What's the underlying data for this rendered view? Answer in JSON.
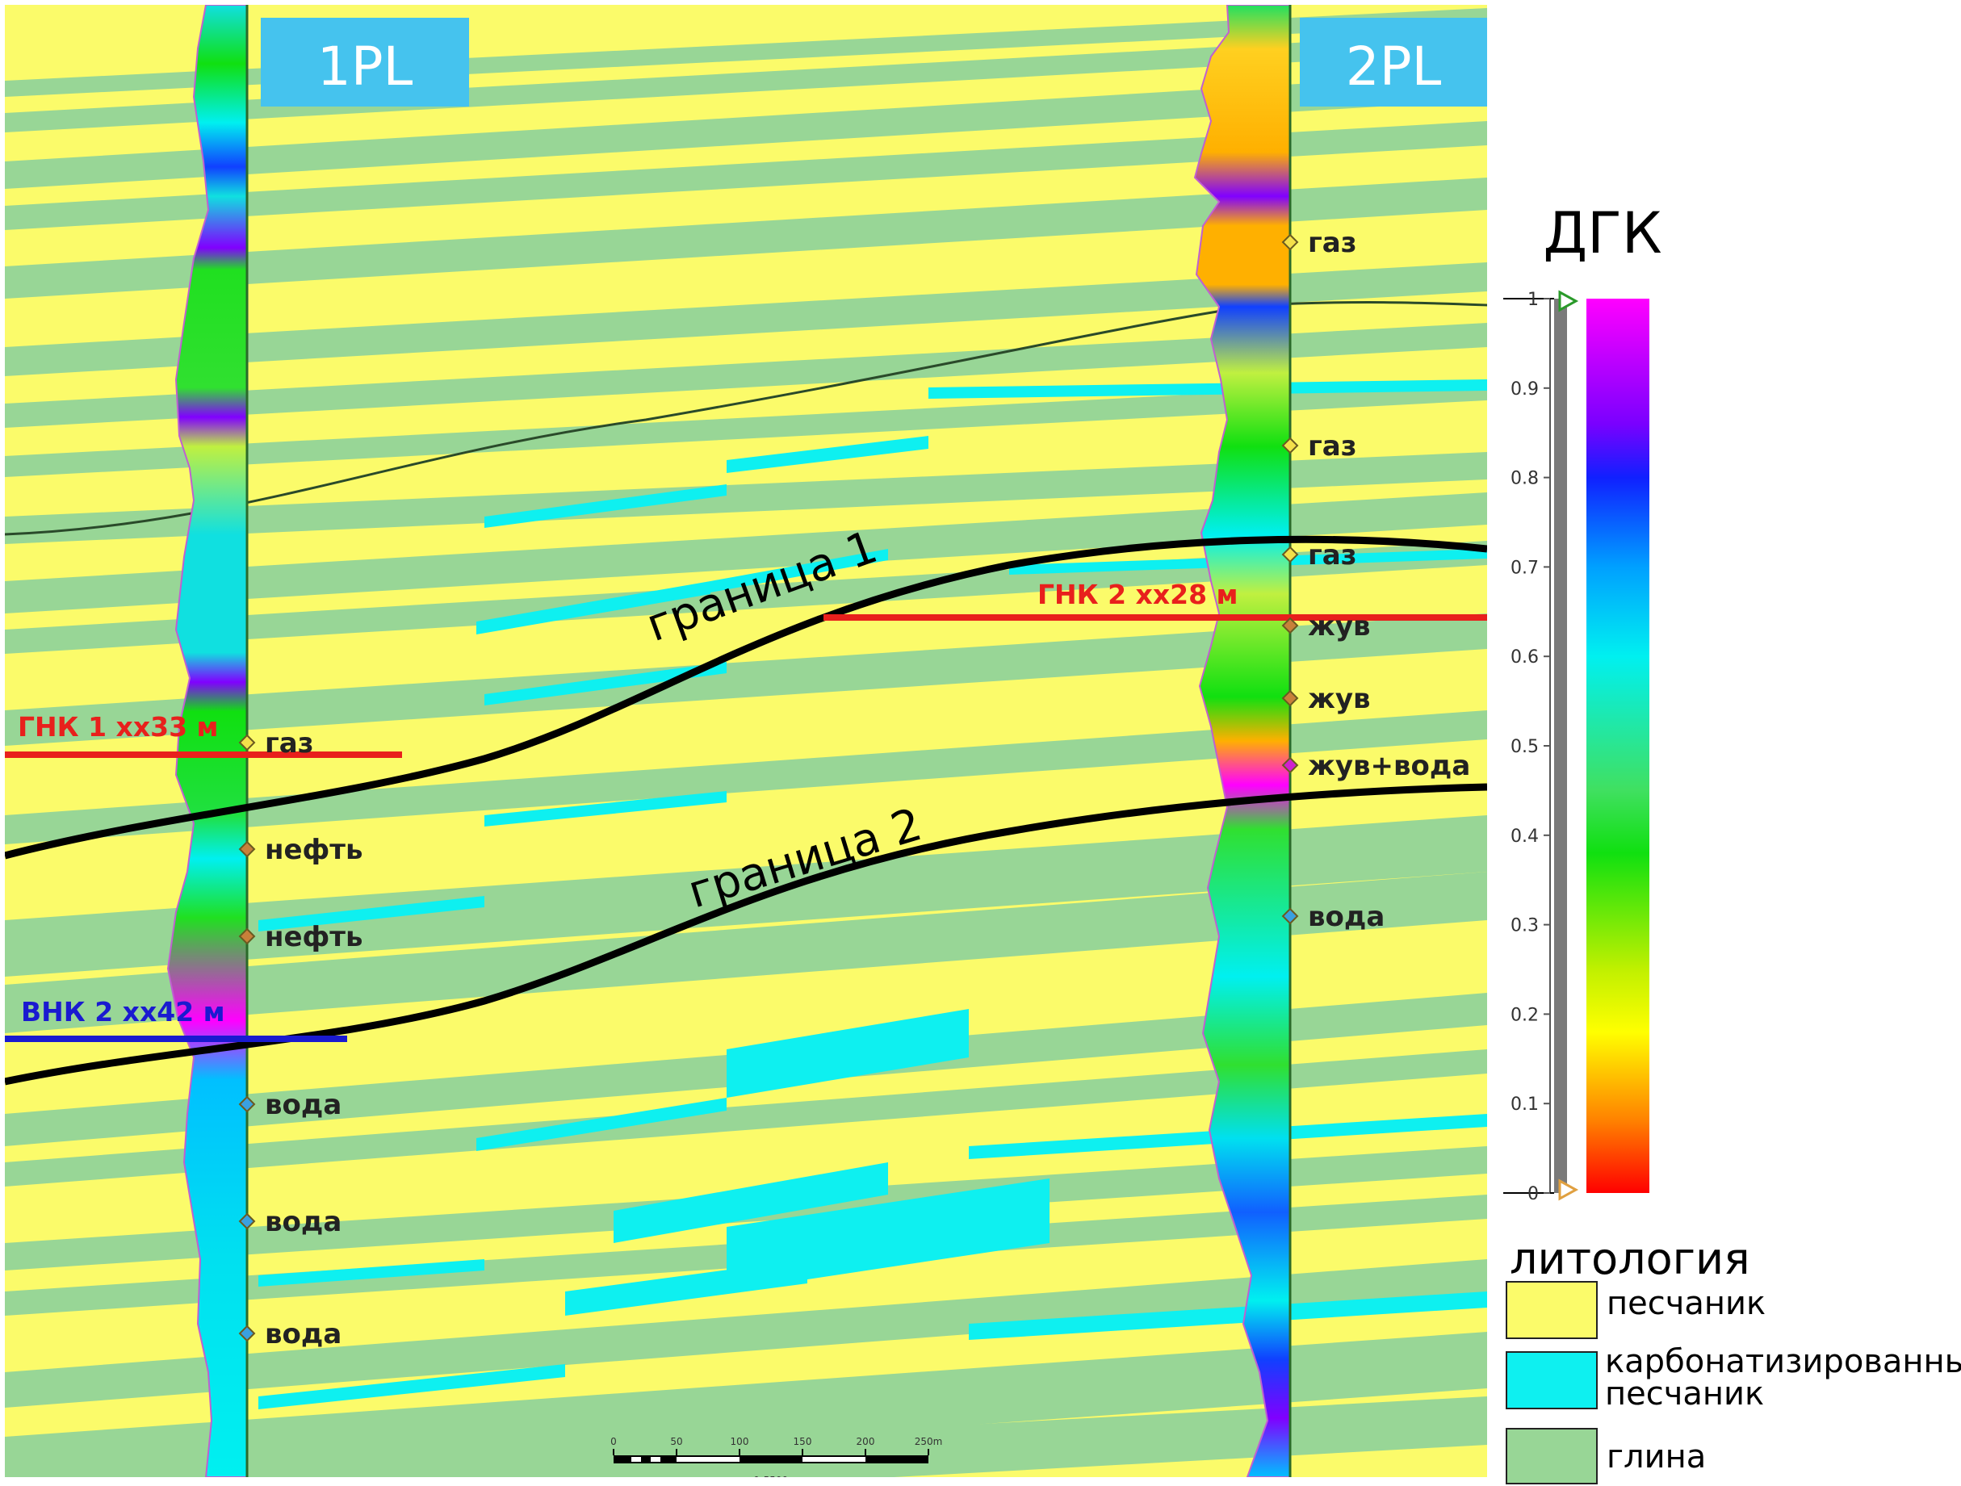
{
  "wells": [
    {
      "id": "1PL",
      "label": "1PL"
    },
    {
      "id": "2PL",
      "label": "2PL"
    }
  ],
  "boundaries": [
    {
      "label": "граница 1"
    },
    {
      "label": "граница 2"
    }
  ],
  "contacts": [
    {
      "label": "ГНК 1 хх33 м",
      "color": "#e8201c"
    },
    {
      "label": "ВНК 2 хх42 м",
      "color": "#1a1ad0"
    },
    {
      "label": "ГНК 2 хх28 м",
      "color": "#e8201c"
    }
  ],
  "well1_markers": [
    {
      "label": "газ",
      "color": "#f4e04a"
    },
    {
      "label": "нефть",
      "color": "#c8803a"
    },
    {
      "label": "нефть",
      "color": "#c8803a"
    },
    {
      "label": "вода",
      "color": "#3aa0e0"
    },
    {
      "label": "вода",
      "color": "#3aa0e0"
    },
    {
      "label": "вода",
      "color": "#3aa0e0"
    }
  ],
  "well2_markers": [
    {
      "label": "газ",
      "color": "#f4e04a"
    },
    {
      "label": "газ",
      "color": "#f4e04a"
    },
    {
      "label": "газ",
      "color": "#f4e04a"
    },
    {
      "label": "жув",
      "color": "#c8803a"
    },
    {
      "label": "жув",
      "color": "#c8803a"
    },
    {
      "label": "жув+вода",
      "color": "#d020d0"
    },
    {
      "label": "вода",
      "color": "#3aa0e0"
    }
  ],
  "colorbar": {
    "title": "ДГК",
    "ticks": [
      "1",
      "0.9",
      "0.8",
      "0.7",
      "0.6",
      "0.5",
      "0.4",
      "0.3",
      "0.2",
      "0.1",
      "0"
    ]
  },
  "lithology": {
    "title": "литология",
    "items": [
      {
        "label": "песчаник",
        "color": "#fbfb6a"
      },
      {
        "label": "карбонатизированный",
        "label2": "песчаник",
        "color": "#0ef0f0"
      },
      {
        "label": "глина",
        "color": "#98d696"
      }
    ]
  },
  "scale_bar": {
    "ticks": [
      "0",
      "50",
      "100",
      "150",
      "200",
      "250m"
    ],
    "ratio": "1:5500"
  },
  "colors": {
    "sand": "#fbfb6a",
    "carbonate_sand": "#0ef0f0",
    "clay": "#98d696",
    "well_label_bg": "#45c3ee",
    "boundary": "#000000"
  }
}
